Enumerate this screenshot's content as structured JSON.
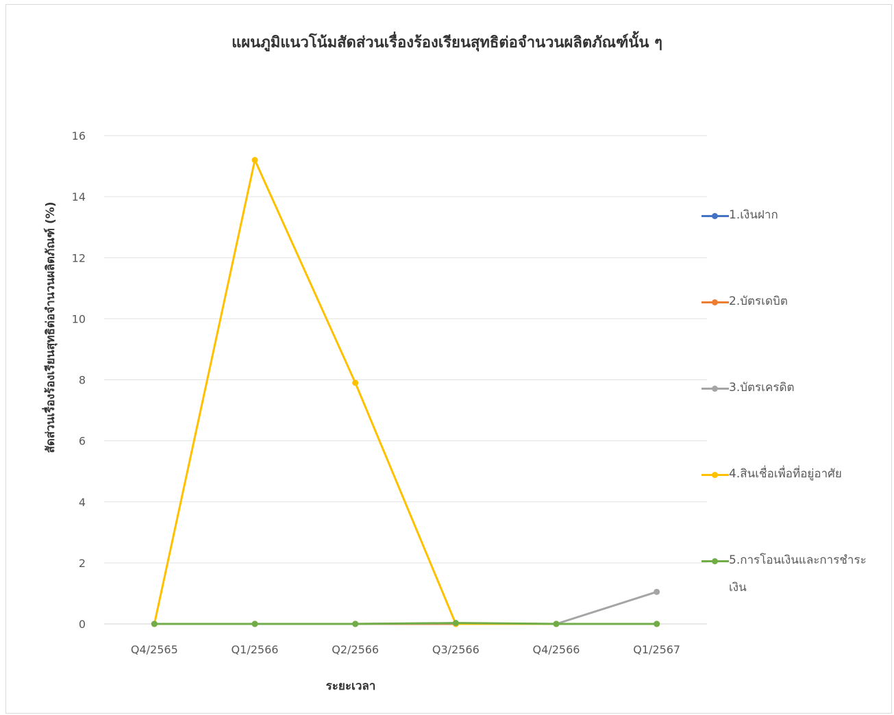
{
  "chart_data": {
    "type": "line",
    "title": "แผนภูมิแนวโน้มสัดส่วนเรื่องร้องเรียนสุทธิต่อจำนวนผลิตภัณฑ์นั้น ๆ",
    "xlabel": "ระยะเวลา",
    "ylabel": "สัดส่วนเรื่องร้องเรียนสุทธิต่อจำนวนผลิตภัณฑ์ (%)",
    "categories": [
      "Q4/2565",
      "Q1/2566",
      "Q2/2566",
      "Q3/2566",
      "Q4/2566",
      "Q1/2567"
    ],
    "ylim": [
      0,
      16
    ],
    "yticks": [
      "0",
      "2",
      "4",
      "6",
      "8",
      "10",
      "12",
      "14",
      "16"
    ],
    "grid": true,
    "legend_position": "right",
    "series": [
      {
        "name": "1.เงินฝาก",
        "color": "#4472C4",
        "values": [
          0,
          0,
          0,
          0,
          0,
          0
        ]
      },
      {
        "name": "2.บัตรเดบิต",
        "color": "#ED7D31",
        "values": [
          0,
          0,
          0,
          0,
          0,
          0
        ]
      },
      {
        "name": "3.บัตรเครดิต",
        "color": "#A5A5A5",
        "values": [
          0,
          0,
          0,
          0.02,
          0,
          1.05
        ]
      },
      {
        "name": "4.สินเชื่อเพื่อที่อยู่อาศัย",
        "color": "#FFC000",
        "values": [
          0,
          15.2,
          7.9,
          0,
          0,
          0
        ]
      },
      {
        "name": "5.การโอนเงินและการชำระเงิน",
        "color": "#70AD47",
        "values": [
          0,
          0,
          0,
          0.03,
          0,
          0
        ]
      }
    ]
  }
}
